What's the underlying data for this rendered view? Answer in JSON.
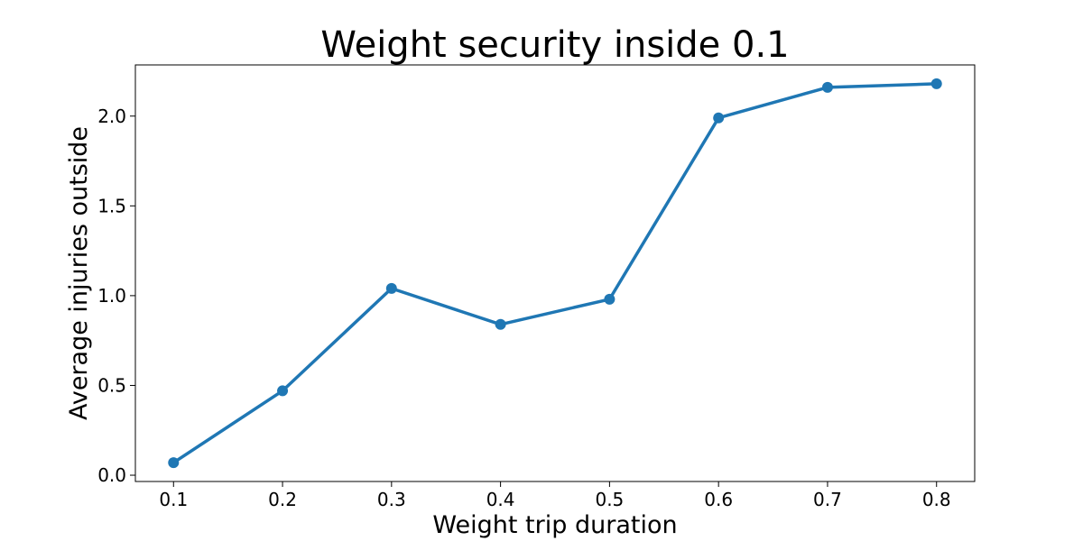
{
  "chart_data": {
    "type": "line",
    "title": "Weight security inside 0.1",
    "xlabel": "Weight trip duration",
    "ylabel": "Average injuries outside",
    "x": [
      0.1,
      0.2,
      0.3,
      0.4,
      0.5,
      0.6,
      0.7,
      0.8
    ],
    "series": [
      {
        "values": [
          0.07,
          0.47,
          1.04,
          0.84,
          0.98,
          1.99,
          2.16,
          2.18
        ]
      }
    ],
    "xticks": [
      "0.1",
      "0.2",
      "0.3",
      "0.4",
      "0.5",
      "0.6",
      "0.7",
      "0.8"
    ],
    "yticks": [
      "0.0",
      "0.5",
      "1.0",
      "1.5",
      "2.0"
    ],
    "xlim": [
      0.065,
      0.835
    ],
    "ylim": [
      -0.035,
      2.285
    ],
    "grid": false,
    "legend": "none",
    "line_color": "#1f77b4"
  }
}
